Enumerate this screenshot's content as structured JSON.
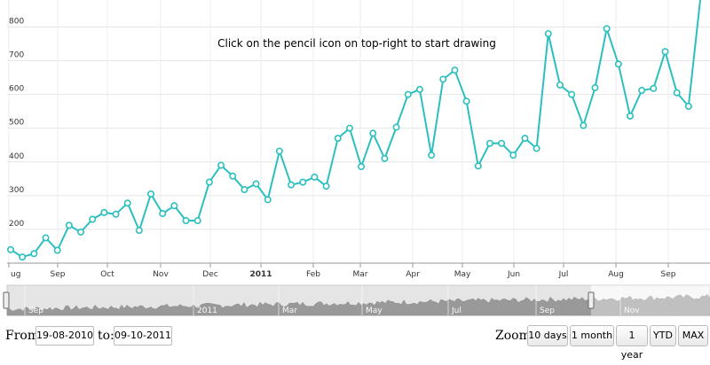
{
  "annotation": "Click on the pencil icon on top-right to start drawing",
  "chart_data": {
    "type": "line",
    "ylim": [
      100,
      880
    ],
    "y_ticks": [
      800,
      700,
      600,
      500,
      400,
      300,
      200
    ],
    "x_ticks": [
      {
        "label": "ug",
        "bold": false
      },
      {
        "label": "Sep",
        "bold": false
      },
      {
        "label": "Oct",
        "bold": false
      },
      {
        "label": "Nov",
        "bold": false
      },
      {
        "label": "Dec",
        "bold": false
      },
      {
        "label": "2011",
        "bold": true
      },
      {
        "label": "Feb",
        "bold": false
      },
      {
        "label": "Mar",
        "bold": false
      },
      {
        "label": "Apr",
        "bold": false
      },
      {
        "label": "May",
        "bold": false
      },
      {
        "label": "Jun",
        "bold": false
      },
      {
        "label": "Jul",
        "bold": false
      },
      {
        "label": "Aug",
        "bold": false
      },
      {
        "label": "Sep",
        "bold": false
      }
    ],
    "series": [
      {
        "color": "#2dbfbf",
        "values": [
          140,
          118,
          128,
          175,
          138,
          212,
          192,
          230,
          250,
          245,
          278,
          197,
          305,
          247,
          270,
          226,
          226,
          340,
          390,
          358,
          318,
          335,
          288,
          432,
          332,
          340,
          355,
          328,
          470,
          500,
          386,
          485,
          410,
          503,
          600,
          615,
          420,
          645,
          672,
          580,
          388,
          455,
          455,
          420,
          470,
          440,
          780,
          628,
          600,
          508,
          620,
          795,
          690,
          536,
          612,
          618,
          727,
          605,
          565,
          880
        ]
      }
    ]
  },
  "navigator": {
    "labels": [
      "Sep",
      "2011",
      "Mar",
      "May",
      "Jul",
      "Sep",
      "Nov"
    ]
  },
  "range": {
    "from_label": "From:",
    "from_value": "19-08-2010",
    "to_label": "to:",
    "to_value": "09-10-2011"
  },
  "zoom": {
    "label": "Zoom:",
    "buttons": [
      "10 days",
      "1 month",
      "1 year",
      "YTD",
      "MAX"
    ]
  }
}
